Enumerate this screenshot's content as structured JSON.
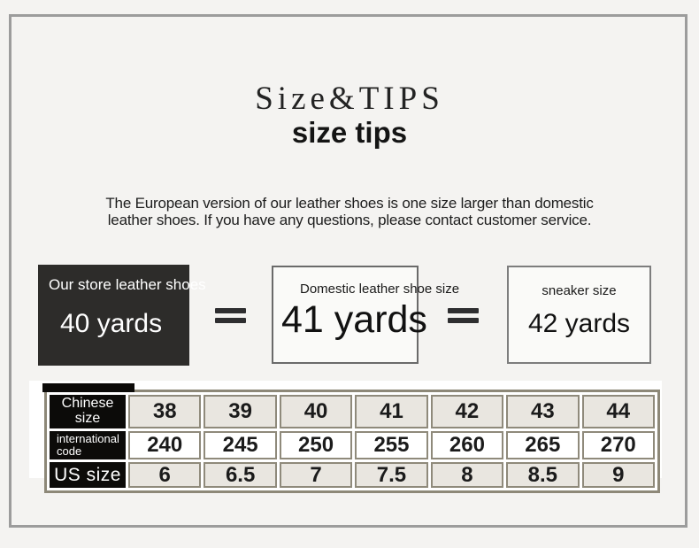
{
  "header": {
    "title": "Size&TIPS",
    "subtitle": "size tips"
  },
  "notice": {
    "line1": "The European version of our leather shoes is one size larger than domestic",
    "line2": "leather shoes. If you have any questions, please contact customer service."
  },
  "conversion": {
    "store": {
      "label": "Our store leather shoes",
      "value": "40 yards"
    },
    "domestic": {
      "label": "Domestic leather shoe size",
      "value": "41 yards"
    },
    "sneaker": {
      "label": "sneaker size",
      "value": "42 yards"
    },
    "equals": "="
  },
  "size_table": {
    "rows": [
      {
        "label": "Chinese size",
        "values": [
          "38",
          "39",
          "40",
          "41",
          "42",
          "43",
          "44"
        ]
      },
      {
        "label": "international code",
        "values": [
          "240",
          "245",
          "250",
          "255",
          "260",
          "265",
          "270"
        ]
      },
      {
        "label": "US size",
        "values": [
          "6",
          "6.5",
          "7",
          "7.5",
          "8",
          "8.5",
          "9"
        ]
      }
    ]
  },
  "colors": {
    "background": "#f4f3f1",
    "frame_border": "#9c9c9c",
    "dark_box": "#2d2c2a",
    "outline_box_border": "#6a6a6a",
    "equals_sign": "#2e2e30",
    "table_outer_border": "#8d8878",
    "cell_border": "#8f8a7b",
    "shaded_cell": "#e9e6e0",
    "label_cell": "#0c0b09",
    "text": "#1d1d1d"
  }
}
